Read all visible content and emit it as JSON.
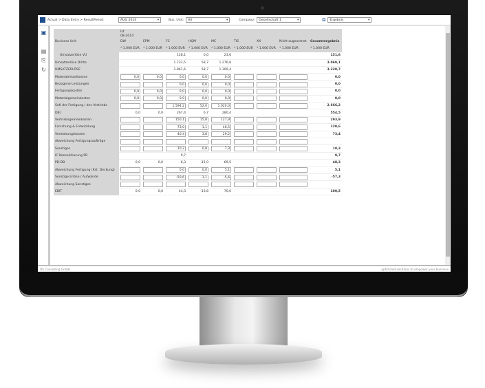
{
  "toolbar": {
    "breadcrumb": "Actual  > Data Entry  > ResultPeriod:",
    "period": "AUG 2014",
    "bus_unit_label": "Bus. Unit:",
    "bus_unit": "All",
    "company_label": "Company:",
    "company": "Gesellschaft 1",
    "report": "Ergebnis"
  },
  "table": {
    "corner_label": "Business Unit",
    "scenario": "Ist",
    "period": "08-2014",
    "columns": [
      "DW",
      "EPM",
      "FC",
      "HQM",
      "MC",
      "TIS",
      "XX",
      "Nicht zugeordnet",
      "Gesamtergebnis"
    ],
    "unit": "* 1.000 EUR",
    "rows": [
      {
        "label": "Umsatzerlöse VU",
        "indent": true,
        "cells": [
          "",
          "",
          "128,1",
          "0,0",
          "23,6",
          "",
          "",
          ""
        ],
        "editable": false,
        "total": "151,6"
      },
      {
        "label": "Umsatzerlöse Dritte",
        "cells": [
          "",
          "",
          "1.733,5",
          "58,7",
          "1.276,8",
          "",
          "",
          ""
        ],
        "editable": false,
        "total": "3.069,1"
      },
      {
        "label": "UMSATZERLÖSE",
        "cells": [
          "",
          "",
          "1.861,6",
          "58,7",
          "1.300,4",
          "",
          "",
          ""
        ],
        "editable": false,
        "total": "3.220,7"
      },
      {
        "label": "Materialeinzelkosten",
        "cells": [
          "0,0",
          "0,0",
          "0,0",
          "0,0",
          "0,0",
          "",
          "",
          ""
        ],
        "editable": true,
        "total": "0,0"
      },
      {
        "label": "Bezogene Leistungen",
        "cells": [
          "",
          "",
          "0,0",
          "0,0",
          "0,0",
          "",
          "",
          ""
        ],
        "editable": true,
        "total": "0,0"
      },
      {
        "label": "Fertigungskosten",
        "cells": [
          "0,0",
          "0,0",
          "0,0",
          "0,0",
          "0,0",
          "",
          "",
          ""
        ],
        "editable": true,
        "total": "0,0"
      },
      {
        "label": "Materialgemeinkosten",
        "cells": [
          "0,0",
          "0,0",
          "0,0",
          "0,0",
          "0,0",
          "",
          "",
          ""
        ],
        "editable": true,
        "total": "0,0"
      },
      {
        "label": "SeK der Fertigung / des Vertriebs",
        "cells": [
          "",
          "",
          "1.594,2",
          "52,0",
          "1.020,0",
          "",
          "",
          ""
        ],
        "editable": true,
        "total": "2.666,2"
      },
      {
        "label": "DB I",
        "cells": [
          "0,0",
          "0,0",
          "267,4",
          "6,7",
          "280,4",
          "",
          "",
          ""
        ],
        "editable": false,
        "total": "554,5"
      },
      {
        "label": "Vertriebsgemeinkosten",
        "cells": [
          "",
          "",
          "150,1",
          "15,8",
          "127,9",
          "",
          "",
          ""
        ],
        "editable": true,
        "total": "293,9"
      },
      {
        "label": "Forschung & Entwicklung",
        "cells": [
          "",
          "",
          "73,0",
          "1,1",
          "46,5",
          "",
          "",
          ""
        ],
        "editable": true,
        "total": "120,6"
      },
      {
        "label": "Verwaltungskosten",
        "cells": [
          "",
          "",
          "40,4",
          "3,8",
          "29,2",
          "",
          "",
          ""
        ],
        "editable": true,
        "total": "73,4"
      },
      {
        "label": "Abweichung Fertigungsaufträge",
        "cells": [
          "",
          "",
          "",
          "",
          "",
          "",
          "",
          ""
        ],
        "editable": true,
        "total": ""
      },
      {
        "label": "Sonstiges",
        "cells": [
          "",
          "",
          "10,2",
          "0,8",
          "7,3",
          "",
          "",
          ""
        ],
        "editable": true,
        "total": "18,3"
      },
      {
        "label": "IC Konsolidierung PB",
        "cells": [
          "",
          "",
          "9,7",
          "",
          "",
          "",
          "",
          ""
        ],
        "editable": false,
        "total": "9,7"
      },
      {
        "label": "PB-DB",
        "cells": [
          "0,0",
          "0,0",
          "-6,3",
          "-15,0",
          "69,5",
          "",
          "",
          ""
        ],
        "editable": false,
        "total": "48,3"
      },
      {
        "label": "Abweichung Fertigung (Kst. Deckung)",
        "cells": [
          "",
          "",
          "0,0",
          "0,0",
          "5,1",
          "",
          "",
          ""
        ],
        "editable": true,
        "total": "5,1"
      },
      {
        "label": "Sonstige Erlöse / Aufwände",
        "cells": [
          "",
          "",
          "-50,6",
          "-1,1",
          "-5,6",
          "",
          "",
          ""
        ],
        "editable": true,
        "total": "-57,3"
      },
      {
        "label": "Abweichung Sonstiges",
        "cells": [
          "",
          "",
          "",
          "",
          "",
          "",
          "",
          ""
        ],
        "editable": true,
        "total": ""
      },
      {
        "label": "EBIT",
        "cells": [
          "0,0",
          "0,0",
          "44,3",
          "-13,8",
          "70,0",
          "",
          "",
          ""
        ],
        "editable": false,
        "total": "100,5"
      }
    ]
  },
  "footer": {
    "left": "OS Consulting GmbH",
    "right": "optimized solutions to empower your business"
  }
}
